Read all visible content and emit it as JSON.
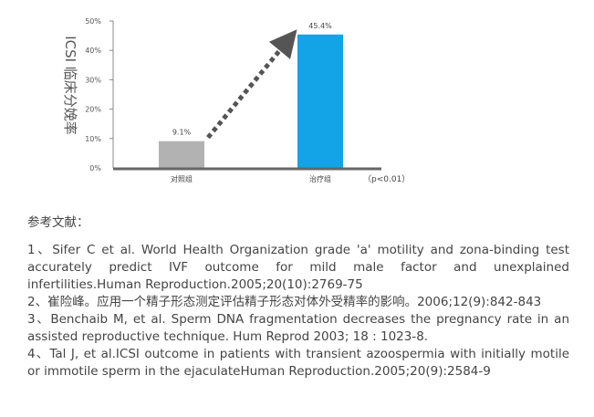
{
  "chart_data": {
    "type": "bar",
    "categories": [
      "对照组",
      "治疗组"
    ],
    "values": [
      9.1,
      45.4
    ],
    "value_labels": [
      "9.1%",
      "45.4%"
    ],
    "bar_colors": [
      "#b2b2b2",
      "#12a4e6"
    ],
    "title": "",
    "xlabel": "",
    "ylabel": "ICSI 临床分娩率",
    "ylim": [
      0,
      50
    ],
    "yticks": [
      0,
      10,
      20,
      30,
      40,
      50
    ],
    "ytick_labels": [
      "0%",
      "10%",
      "20%",
      "30%",
      "40%",
      "50%"
    ],
    "annotation": "（p<0.01）",
    "arrow": "dashed arrow from 对照组 bar to 治疗组 bar",
    "grid": false,
    "legend": "none"
  },
  "references": {
    "title": "参考文献：",
    "items": [
      "1、Sifer C et al. World Health Organization grade 'a' motility and zona-binding test accurately predict IVF outcome for mild male factor and unexplained infertilities.Human Reproduction.2005;20(10):2769-75",
      "2、崔险峰。应用一个精子形态测定评估精子形态对体外受精率的影响。2006;12(9):842-843",
      "3、Benchaib M, et al. Sperm DNA fragmentation decreases the pregnancy rate in an assisted reproductive technique. Hum Reprod 2003; 18 : 1023-8.",
      "4、Tal J, et al.ICSI outcome in patients with transient azoospermia with initially motile or immotile sperm in the ejaculateHuman Reproduction.2005;20(9):2584-9"
    ]
  }
}
